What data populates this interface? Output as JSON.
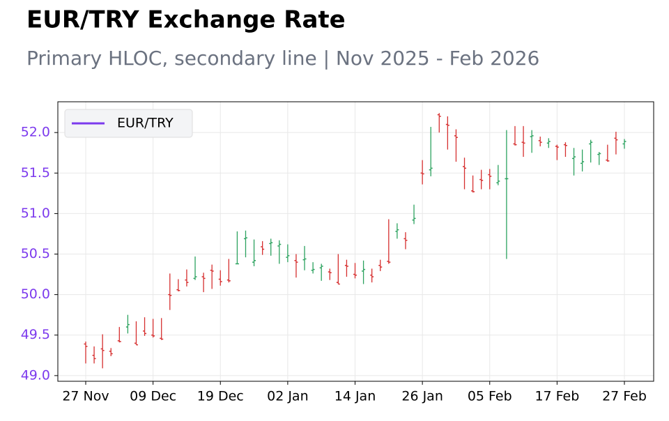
{
  "chart_data": {
    "type": "ohlc",
    "title": "EUR/TRY Exchange Rate",
    "subtitle": "Primary HLOC, secondary line | Nov 2025 - Feb 2026",
    "categories": [
      "27 Nov",
      null,
      null,
      null,
      null,
      null,
      null,
      null,
      "09 Dec",
      null,
      null,
      null,
      null,
      null,
      null,
      null,
      "19 Dec",
      null,
      null,
      null,
      null,
      null,
      null,
      null,
      "02 Jan",
      null,
      null,
      null,
      null,
      null,
      null,
      null,
      "14 Jan",
      null,
      null,
      null,
      null,
      null,
      null,
      null,
      "26 Jan",
      null,
      null,
      null,
      null,
      null,
      null,
      null,
      "05 Feb",
      null,
      null,
      null,
      null,
      null,
      null,
      null,
      "17 Feb",
      null,
      null,
      null,
      null,
      null,
      null,
      null,
      "27 Feb"
    ],
    "series": [
      {
        "name": "EUR/TRY",
        "color": "#7c3aed",
        "up_color": "#2ca25f",
        "down_color": "#d62f2f",
        "open": [
          49.39,
          49.25,
          49.33,
          49.3,
          49.43,
          49.6,
          49.4,
          49.55,
          49.5,
          49.46,
          50.0,
          50.06,
          50.18,
          50.2,
          50.22,
          50.3,
          50.19,
          50.18,
          50.38,
          50.69,
          50.4,
          50.59,
          50.63,
          50.6,
          50.46,
          50.42,
          50.43,
          50.3,
          50.33,
          50.28,
          50.15,
          50.36,
          50.25,
          50.29,
          50.24,
          50.36,
          50.41,
          50.78,
          50.69,
          50.92,
          51.5,
          51.54,
          52.22,
          52.1,
          51.96,
          51.58,
          51.28,
          51.42,
          51.48,
          51.38,
          51.43,
          51.86,
          51.88,
          51.95,
          51.9,
          51.87,
          51.83,
          51.85,
          51.68,
          51.62,
          51.86,
          51.73,
          51.66,
          51.93,
          51.86
        ],
        "high": [
          49.42,
          49.36,
          49.51,
          49.34,
          49.6,
          49.75,
          49.67,
          49.72,
          49.7,
          49.71,
          50.26,
          50.19,
          50.31,
          50.47,
          50.27,
          50.37,
          50.3,
          50.44,
          50.78,
          50.79,
          50.68,
          50.66,
          50.69,
          50.67,
          50.62,
          50.5,
          50.6,
          50.4,
          50.38,
          50.32,
          50.5,
          50.43,
          50.39,
          50.42,
          50.32,
          50.43,
          50.93,
          50.88,
          50.77,
          51.11,
          51.66,
          52.07,
          52.24,
          52.2,
          52.04,
          51.69,
          51.47,
          51.54,
          51.55,
          51.6,
          52.03,
          52.08,
          52.08,
          52.03,
          51.95,
          51.93,
          51.85,
          51.88,
          51.81,
          51.79,
          51.91,
          51.76,
          51.85,
          52.01,
          51.92
        ],
        "low": [
          49.15,
          49.15,
          49.09,
          49.24,
          49.41,
          49.52,
          49.38,
          49.49,
          49.47,
          49.44,
          49.81,
          50.04,
          50.1,
          50.18,
          50.03,
          50.07,
          50.11,
          50.15,
          50.38,
          50.46,
          50.35,
          50.49,
          50.48,
          50.38,
          50.4,
          50.21,
          50.3,
          50.26,
          50.17,
          50.18,
          50.13,
          50.22,
          50.2,
          50.13,
          50.15,
          50.29,
          50.38,
          50.69,
          50.56,
          50.87,
          51.36,
          51.46,
          52.0,
          51.79,
          51.64,
          51.3,
          51.26,
          51.3,
          51.3,
          51.35,
          50.44,
          51.84,
          51.7,
          51.75,
          51.83,
          51.81,
          51.66,
          51.7,
          51.47,
          51.52,
          51.63,
          51.6,
          51.64,
          51.73,
          51.8
        ],
        "close": [
          49.36,
          49.21,
          49.31,
          49.27,
          49.42,
          49.63,
          49.38,
          49.52,
          49.49,
          49.45,
          49.99,
          50.05,
          50.15,
          50.22,
          50.2,
          50.29,
          50.16,
          50.17,
          50.38,
          50.7,
          50.42,
          50.56,
          50.64,
          50.62,
          50.48,
          50.4,
          50.44,
          50.31,
          50.35,
          50.27,
          50.13,
          50.35,
          50.24,
          50.31,
          50.22,
          50.34,
          50.4,
          50.8,
          50.67,
          50.94,
          51.49,
          51.56,
          52.2,
          52.09,
          51.94,
          51.56,
          51.27,
          51.41,
          51.46,
          51.4,
          51.43,
          51.85,
          51.87,
          51.96,
          51.88,
          51.89,
          51.82,
          51.84,
          51.7,
          51.64,
          51.88,
          51.74,
          51.65,
          51.91,
          51.89
        ]
      }
    ],
    "ylim": [
      48.93,
      52.38
    ],
    "yticks": [
      {
        "value": 49,
        "label": "49.0"
      },
      49.5,
      {
        "value": 50,
        "label": "50.0"
      },
      50.5,
      {
        "value": 51,
        "label": "51.0"
      },
      51.5,
      {
        "value": 52,
        "label": "52.0"
      }
    ],
    "grid": true,
    "legend": "upper left"
  }
}
